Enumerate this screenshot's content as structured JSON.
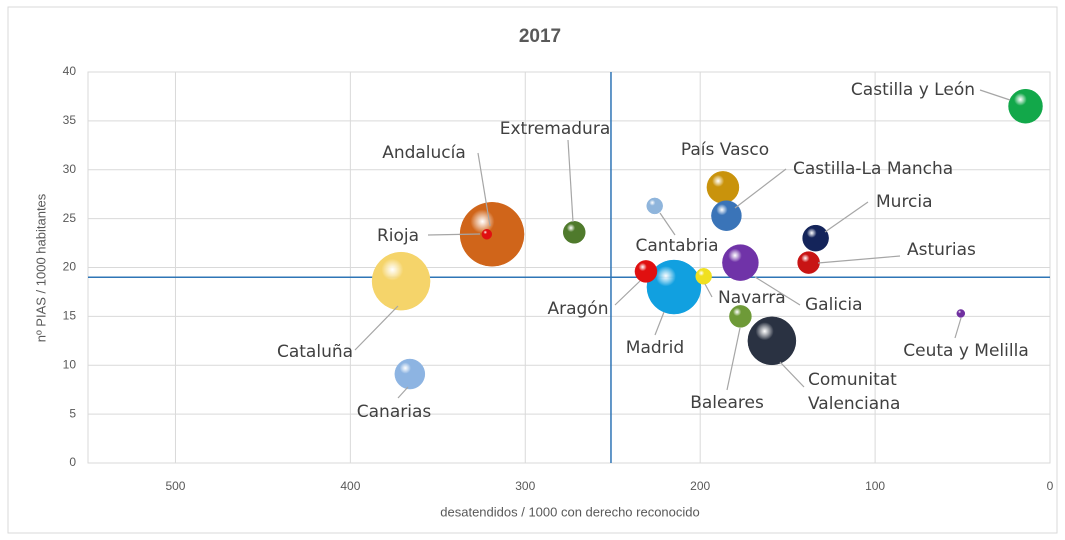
{
  "chart_data": {
    "type": "bubble",
    "title": "2017",
    "x_label": "desatendidos / 1000 con derecho reconocido",
    "y_label": "nº PIAS / 1000 habitantes",
    "xlim": [
      550,
      0
    ],
    "xticks": [
      500,
      400,
      300,
      200,
      100,
      0
    ],
    "ylim": [
      0,
      40
    ],
    "yticks": [
      0,
      5,
      10,
      15,
      20,
      25,
      30,
      35,
      40
    ],
    "grid": true,
    "reference_lines": {
      "x": 251,
      "y": 19,
      "color": "#2e75b6"
    },
    "labels": [
      "Castilla y León",
      "Andalucía",
      "Rioja",
      "Extremadura",
      "País Vasco",
      "Castilla-La Mancha",
      "Cantabria",
      "Murcia",
      "Asturias",
      "Cataluña",
      "Aragón",
      "Madrid",
      "Navarra",
      "Galicia",
      "Baleares",
      "Comunitat Valenciana",
      "Ceuta y Melilla",
      "Canarias"
    ],
    "x": [
      14,
      319,
      322,
      272,
      187,
      185,
      226,
      134,
      138,
      371,
      231,
      215,
      198,
      177,
      177,
      159,
      51,
      366
    ],
    "values": [
      36.5,
      23.4,
      23.4,
      23.6,
      28.2,
      25.3,
      26.3,
      23.0,
      20.5,
      18.6,
      19.6,
      18.0,
      19.1,
      20.5,
      15.0,
      12.5,
      15.3,
      9.1
    ],
    "sizes": [
      289,
      1024,
      25,
      121,
      256,
      225,
      64,
      169,
      121,
      841,
      121,
      729,
      64,
      324,
      121,
      576,
      16,
      225
    ],
    "colors": [
      "#12a84a",
      "#d0651a",
      "#e01010",
      "#4f7a2c",
      "#c9930c",
      "#3a74b8",
      "#8fb5dc",
      "#14245a",
      "#c81414",
      "#f5d46a",
      "#e01010",
      "#11a0e0",
      "#f0e020",
      "#7033a8",
      "#6e9a38",
      "#2a3242",
      "#7030a0",
      "#8db4e2"
    ]
  }
}
